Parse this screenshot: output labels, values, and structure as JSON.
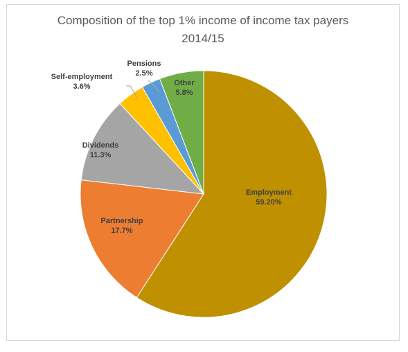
{
  "chart_data": {
    "type": "pie",
    "title": "Composition of the top 1% income of income tax payers 2014/15",
    "title_lines": [
      "Composition of the top 1% income of income tax payers",
      "2014/15"
    ],
    "start": "12 o'clock",
    "direction": "clockwise",
    "legend": "none",
    "slices": [
      {
        "name": "Employment",
        "value": 59.2,
        "label": "59.20%",
        "color": "#bf9000",
        "label_color": "#404040"
      },
      {
        "name": "Partnership",
        "value": 17.7,
        "label": "17.7%",
        "color": "#ed7d31",
        "label_color": "#404040"
      },
      {
        "name": "Dividends",
        "value": 11.3,
        "label": "11.3%",
        "color": "#a5a5a5",
        "label_color": "#404040"
      },
      {
        "name": "Self-employment",
        "value": 3.6,
        "label": "3.6%",
        "color": "#ffc000",
        "label_color": "#404040"
      },
      {
        "name": "Pensions",
        "value": 2.5,
        "label": "2.5%",
        "color": "#5b9bd5",
        "label_color": "#404040"
      },
      {
        "name": "Other",
        "value": 5.8,
        "label": "5.8%",
        "color": "#70ad47",
        "label_color": "#404040"
      }
    ]
  }
}
